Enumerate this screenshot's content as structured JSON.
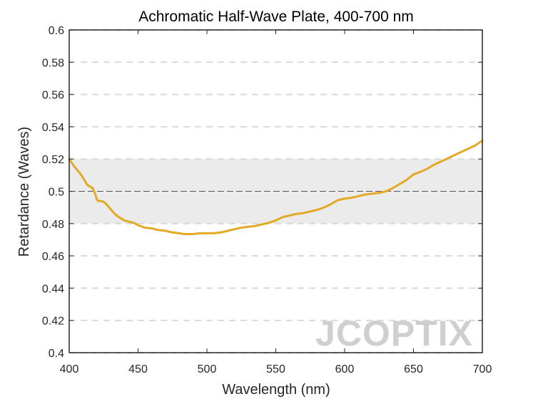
{
  "chart_data": {
    "type": "line",
    "title": "Achromatic Half-Wave Plate, 400-700 nm",
    "xlabel": "Wavelength (nm)",
    "ylabel": "Retardance (Waves)",
    "xlim": [
      400,
      700
    ],
    "ylim": [
      0.4,
      0.6
    ],
    "xticks": [
      "400",
      "450",
      "500",
      "550",
      "600",
      "650",
      "700"
    ],
    "yticks": [
      "0.4",
      "0.42",
      "0.44",
      "0.46",
      "0.48",
      "0.5",
      "0.52",
      "0.54",
      "0.56",
      "0.58",
      "0.6"
    ],
    "grid": "horizontal-dashed",
    "tolerance_band": [
      0.48,
      0.52
    ],
    "reference_line": 0.5,
    "series": [
      {
        "color": "#E3A925",
        "x": [
          400,
          404,
          408,
          411,
          413,
          415,
          417,
          419,
          420,
          421,
          423,
          425,
          427,
          430,
          433,
          436,
          440,
          444,
          447,
          450,
          455,
          460,
          465,
          470,
          475,
          480,
          483,
          486,
          490,
          495,
          500,
          505,
          510,
          515,
          520,
          525,
          530,
          535,
          540,
          545,
          550,
          555,
          560,
          565,
          570,
          575,
          580,
          585,
          590,
          595,
          600,
          605,
          610,
          615,
          620,
          625,
          630,
          635,
          640,
          645,
          650,
          655,
          660,
          665,
          670,
          675,
          680,
          685,
          690,
          695,
          700
        ],
        "y": [
          0.52,
          0.515,
          0.511,
          0.507,
          0.504,
          0.503,
          0.502,
          0.498,
          0.495,
          0.494,
          0.494,
          0.4935,
          0.492,
          0.489,
          0.486,
          0.484,
          0.482,
          0.481,
          0.4805,
          0.479,
          0.4775,
          0.477,
          0.476,
          0.4755,
          0.4745,
          0.474,
          0.4735,
          0.4735,
          0.4735,
          0.474,
          0.474,
          0.474,
          0.4745,
          0.4755,
          0.4765,
          0.4775,
          0.478,
          0.4785,
          0.4795,
          0.4805,
          0.482,
          0.484,
          0.485,
          0.486,
          0.4865,
          0.4875,
          0.4885,
          0.49,
          0.492,
          0.4945,
          0.4955,
          0.496,
          0.497,
          0.498,
          0.4985,
          0.499,
          0.5,
          0.502,
          0.5045,
          0.507,
          0.5105,
          0.512,
          0.514,
          0.5165,
          0.5185,
          0.5205,
          0.5225,
          0.5245,
          0.5265,
          0.5285,
          0.5315
        ]
      }
    ],
    "watermark": "JCOPTIX"
  }
}
